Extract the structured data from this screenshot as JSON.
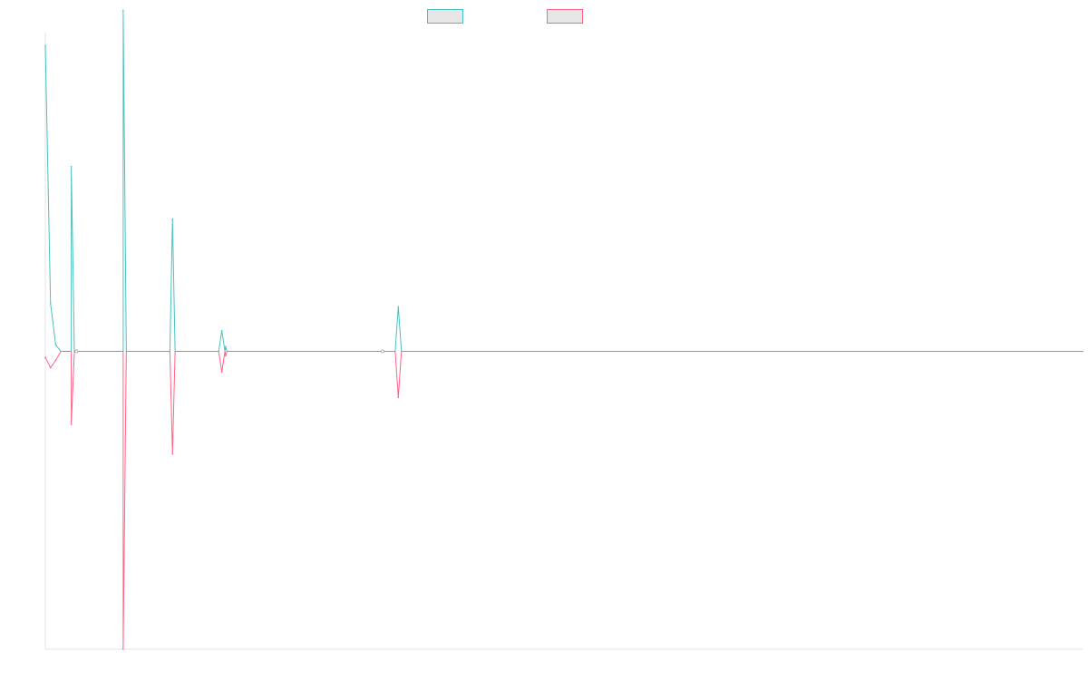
{
  "chart_data": {
    "type": "line",
    "title": "",
    "xlabel": "",
    "ylabel": "",
    "x": [
      0,
      0.02,
      0.04,
      0.06,
      0.08,
      0.1,
      0.13,
      0.15,
      0.17,
      0.3,
      0.35,
      0.37,
      0.38,
      0.4,
      0.47,
      0.48,
      0.5,
      0.7,
      0.72,
      0.74,
      0.85,
      0.87,
      0.89,
      0.92,
      0.94,
      1.05,
      1.2,
      1.62,
      1.65,
      1.68,
      1.71,
      4.0
    ],
    "ylim": [
      -1,
      1.0
    ],
    "xlim": [
      0,
      4.0
    ],
    "grid": false,
    "legend_position": "top",
    "series": [
      {
        "color": "#4bc0c0",
        "values": [
          0.96,
          0.15,
          0.02,
          0,
          0,
          0,
          0,
          0,
          0,
          0,
          0,
          0,
          0,
          0,
          0,
          0,
          0,
          0,
          0,
          0,
          0,
          0,
          0,
          0,
          0,
          0,
          0,
          0,
          0,
          0,
          0,
          0
        ]
      },
      {
        "color": "#ff6384",
        "values": [
          -0.02,
          -0.055,
          -0.03,
          0,
          0,
          0,
          0,
          0,
          0,
          0,
          0,
          0,
          0,
          0,
          0,
          0,
          0,
          0,
          0,
          0,
          0,
          0,
          0,
          0,
          0,
          0,
          0,
          0,
          0,
          0,
          0,
          0
        ]
      }
    ],
    "spikes": [
      {
        "x": 0.1,
        "teal": 0.58,
        "pink": -0.245
      },
      {
        "x": 0.3,
        "teal": 1.07,
        "pink": -1.0
      },
      {
        "x": 0.49,
        "teal": 0.415,
        "pink": -0.345
      },
      {
        "x": 0.68,
        "teal": 0.065,
        "pink": -0.07
      },
      {
        "x": 1.36,
        "teal": 0.14,
        "pink": -0.155
      }
    ]
  }
}
